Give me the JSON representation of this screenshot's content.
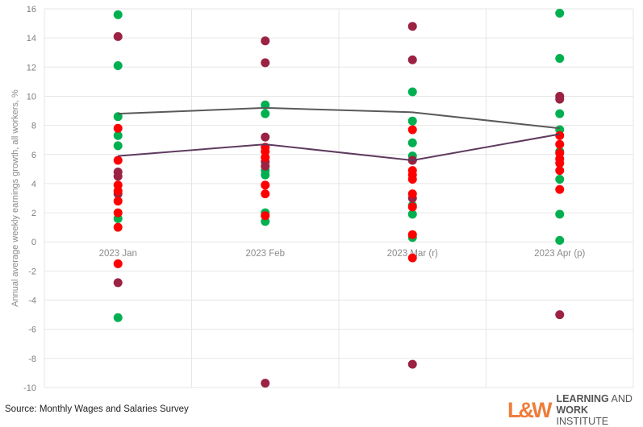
{
  "chart_data": {
    "type": "scatter",
    "title": "",
    "xlabel": "",
    "ylabel": "Annual average weekly earnings growth, all workers, %",
    "ylim": [
      -10,
      16
    ],
    "yticks": [
      -10,
      -8,
      -6,
      -4,
      -2,
      0,
      2,
      4,
      6,
      8,
      10,
      12,
      14,
      16
    ],
    "grid": true,
    "categories": [
      "2023 Jan",
      "2023 Feb",
      "2023 Mar (r)",
      "2023 Apr (p)"
    ],
    "series": [
      {
        "name": "green",
        "color": "#00b050",
        "type": "scatter",
        "values": [
          [
            15.6,
            12.1,
            8.6,
            7.3,
            6.6,
            1.6,
            -5.2
          ],
          [
            9.4,
            8.8,
            4.9,
            4.6,
            2.0,
            1.4
          ],
          [
            10.3,
            8.3,
            6.8,
            5.9,
            5.6,
            2.5,
            1.9,
            0.3
          ],
          [
            15.7,
            12.6,
            8.8,
            7.7,
            6.2,
            4.3,
            1.9,
            0.1
          ]
        ]
      },
      {
        "name": "maroon",
        "color": "#9b2243",
        "type": "scatter",
        "values": [
          [
            14.1,
            4.8,
            4.5,
            3.3,
            -2.8
          ],
          [
            13.8,
            12.3,
            7.2,
            5.5,
            5.2,
            -9.7
          ],
          [
            14.8,
            12.5,
            5.6,
            3.0,
            -8.4
          ],
          [
            10.0,
            9.8,
            -5.0
          ]
        ]
      },
      {
        "name": "red",
        "color": "#ff0000",
        "type": "scatter",
        "values": [
          [
            7.8,
            5.6,
            3.9,
            3.5,
            2.8,
            2.0,
            1.0,
            -1.5
          ],
          [
            6.5,
            6.2,
            5.8,
            3.9,
            3.3,
            1.8
          ],
          [
            7.7,
            4.9,
            4.6,
            4.3,
            3.3,
            2.4,
            0.5,
            -1.1
          ],
          [
            7.3,
            6.7,
            6.1,
            5.7,
            5.4,
            4.9,
            3.6
          ]
        ]
      },
      {
        "name": "upper line",
        "color": "#595959",
        "type": "line",
        "values": [
          8.8,
          9.2,
          8.9,
          7.8
        ]
      },
      {
        "name": "lower line",
        "color": "#5e3a5e",
        "type": "line",
        "values": [
          5.9,
          6.7,
          5.6,
          7.4
        ]
      }
    ]
  },
  "footer": {
    "source": "Source: Monthly Wages and Salaries Survey",
    "logo_mark": "L&W",
    "logo_line1_bold": "LEARNING",
    "logo_line1_rest": " AND",
    "logo_line2_bold": "WORK",
    "logo_line2_rest": " INSTITUTE"
  }
}
